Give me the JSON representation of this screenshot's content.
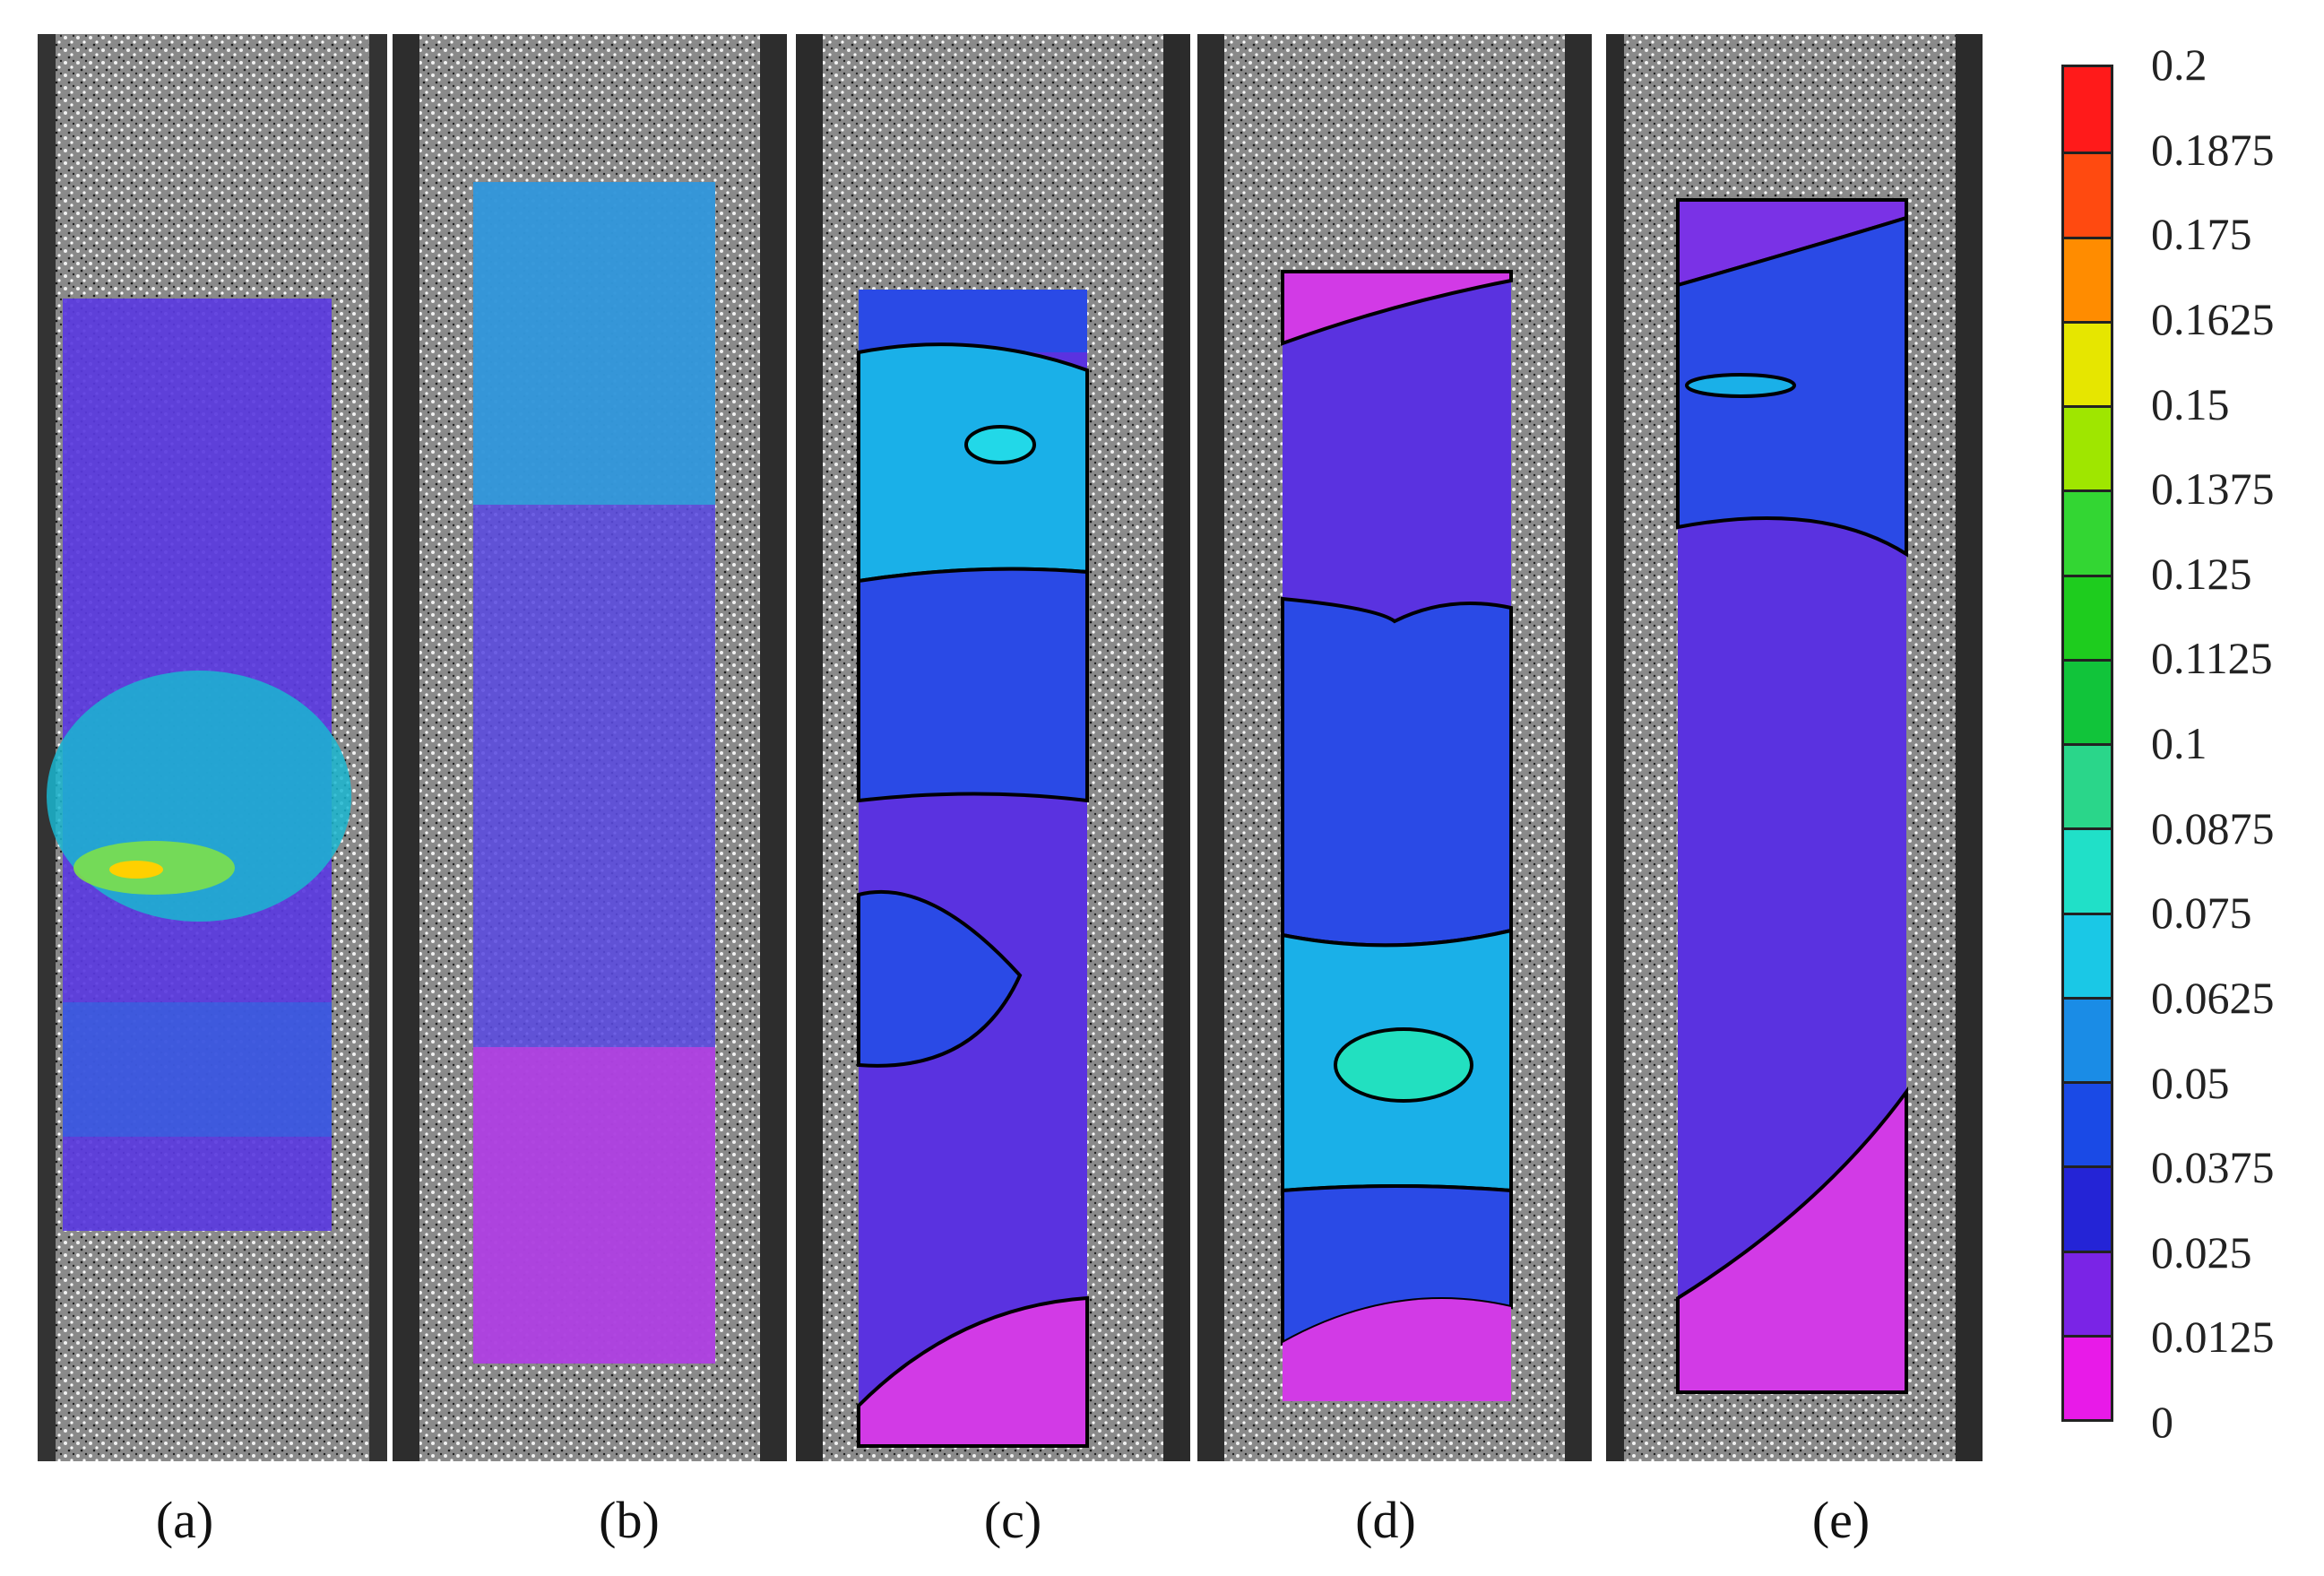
{
  "panels": [
    {
      "id": "a",
      "label": "(a)"
    },
    {
      "id": "b",
      "label": "(b)"
    },
    {
      "id": "c",
      "label": "(c)"
    },
    {
      "id": "d",
      "label": "(d)"
    },
    {
      "id": "e",
      "label": "(e)"
    }
  ],
  "colorbar": {
    "ticks": [
      "0.2",
      "0.1875",
      "0.175",
      "0.1625",
      "0.15",
      "0.1375",
      "0.125",
      "0.1125",
      "0.1",
      "0.0875",
      "0.075",
      "0.0625",
      "0.05",
      "0.0375",
      "0.025",
      "0.0125",
      "0"
    ],
    "colors": [
      "#ff1a1a",
      "#ff4a10",
      "#ff8c00",
      "#e6e600",
      "#9fe600",
      "#33d633",
      "#1ecc1e",
      "#11c43a",
      "#2ad68a",
      "#20e0c8",
      "#1ac8e6",
      "#1a8ce6",
      "#1a4ae6",
      "#2424d6",
      "#7a24e6",
      "#e81ae8"
    ]
  }
}
